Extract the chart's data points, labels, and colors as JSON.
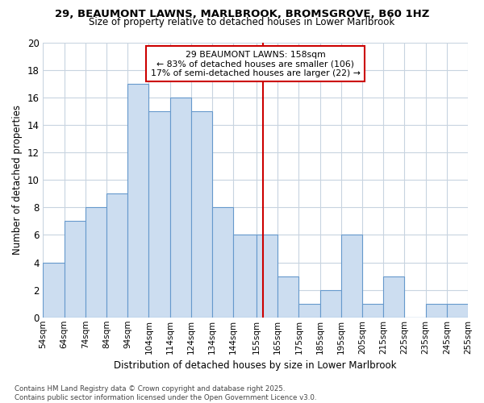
{
  "title_line1": "29, BEAUMONT LAWNS, MARLBROOK, BROMSGROVE, B60 1HZ",
  "title_line2": "Size of property relative to detached houses in Lower Marlbrook",
  "xlabel": "Distribution of detached houses by size in Lower Marlbrook",
  "ylabel": "Number of detached properties",
  "footnote": "Contains HM Land Registry data © Crown copyright and database right 2025.\nContains public sector information licensed under the Open Government Licence v3.0.",
  "bin_labels": [
    "54sqm",
    "64sqm",
    "74sqm",
    "84sqm",
    "94sqm",
    "104sqm",
    "114sqm",
    "124sqm",
    "134sqm",
    "144sqm",
    "155sqm",
    "165sqm",
    "175sqm",
    "185sqm",
    "195sqm",
    "205sqm",
    "215sqm",
    "225sqm",
    "235sqm",
    "245sqm",
    "255sqm"
  ],
  "bin_edges": [
    54,
    64,
    74,
    84,
    94,
    104,
    114,
    124,
    134,
    144,
    155,
    165,
    175,
    185,
    195,
    205,
    215,
    225,
    235,
    245,
    255
  ],
  "bar_heights": [
    4,
    7,
    8,
    9,
    17,
    15,
    16,
    15,
    8,
    6,
    6,
    3,
    1,
    2,
    6,
    1,
    3,
    0,
    1,
    1,
    0
  ],
  "bar_color": "#ccddf0",
  "bar_edge_color": "#6699cc",
  "grid_color": "#c8d4e0",
  "vline_x": 158,
  "vline_color": "#cc0000",
  "annotation_text": "29 BEAUMONT LAWNS: 158sqm\n← 83% of detached houses are smaller (106)\n17% of semi-detached houses are larger (22) →",
  "annotation_box_color": "#ffffff",
  "annotation_box_edge": "#cc0000",
  "ylim": [
    0,
    20
  ],
  "yticks": [
    0,
    2,
    4,
    6,
    8,
    10,
    12,
    14,
    16,
    18,
    20
  ],
  "background_color": "#ffffff"
}
